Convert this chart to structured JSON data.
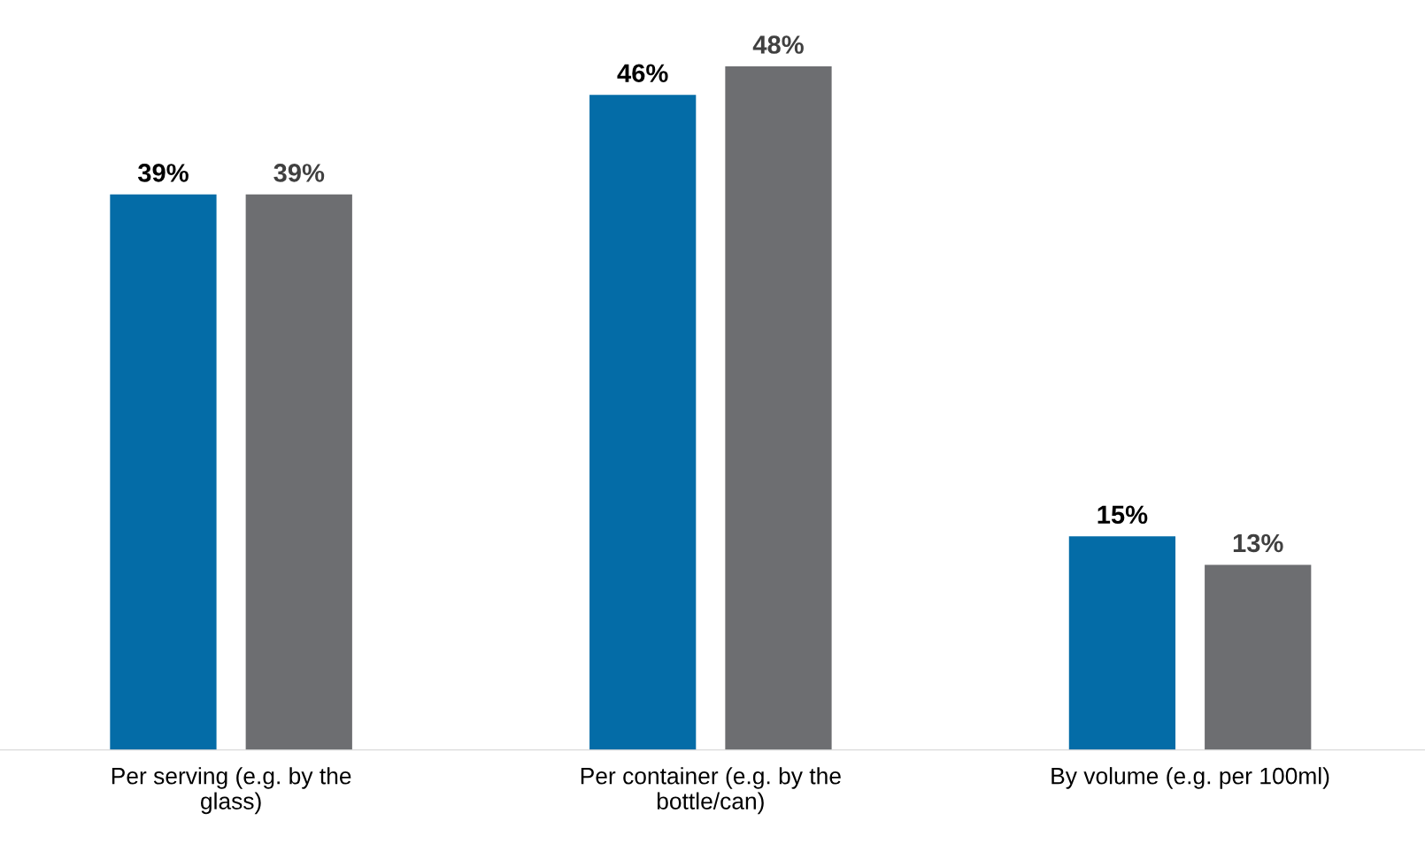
{
  "chart_data": {
    "type": "bar",
    "categories": [
      "Per serving (e.g. by the glass)",
      "Per container (e.g. by the bottle/can)",
      "By volume (e.g. per 100ml)"
    ],
    "series": [
      {
        "color": "#046ca7",
        "values": [
          39,
          46,
          15
        ],
        "value_labels": [
          "39%",
          "46%",
          "15%"
        ]
      },
      {
        "color": "#6d6e71",
        "values": [
          39,
          48,
          13
        ],
        "value_labels": [
          "39%",
          "48%",
          "13%"
        ]
      }
    ],
    "grid": false,
    "legend": false
  }
}
